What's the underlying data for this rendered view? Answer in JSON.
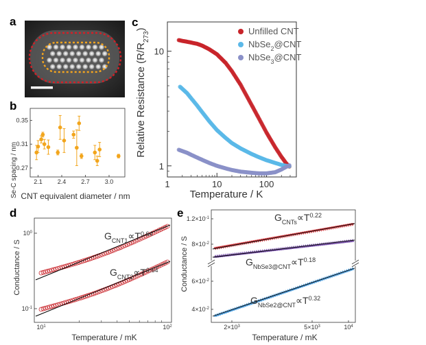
{
  "panels": {
    "a": {
      "label": "a"
    },
    "b": {
      "label": "b",
      "chart_data": {
        "type": "scatter",
        "xlabel": "CNT equivalent diameter / nm",
        "ylabel": "Se-C spacing / nm",
        "xlim": [
          2.0,
          3.2
        ],
        "ylim": [
          0.255,
          0.37
        ],
        "xticks": [
          "2.1",
          "2.4",
          "2.7",
          "3.0"
        ],
        "yticks": [
          "0.27",
          "0.31",
          "0.35"
        ],
        "points": [
          {
            "x": 2.08,
            "y": 0.296,
            "err": 0.012
          },
          {
            "x": 2.1,
            "y": 0.306,
            "err": 0.01
          },
          {
            "x": 2.14,
            "y": 0.318,
            "err": 0.006
          },
          {
            "x": 2.16,
            "y": 0.326,
            "err": 0.004
          },
          {
            "x": 2.18,
            "y": 0.31,
            "err": 0.008
          },
          {
            "x": 2.23,
            "y": 0.305,
            "err": 0.012
          },
          {
            "x": 2.35,
            "y": 0.296,
            "err": 0.004
          },
          {
            "x": 2.38,
            "y": 0.338,
            "err": 0.02
          },
          {
            "x": 2.43,
            "y": 0.316,
            "err": 0.02
          },
          {
            "x": 2.55,
            "y": 0.326,
            "err": 0.006
          },
          {
            "x": 2.59,
            "y": 0.304,
            "err": 0.03
          },
          {
            "x": 2.62,
            "y": 0.345,
            "err": 0.012
          },
          {
            "x": 2.65,
            "y": 0.29,
            "err": 0.004
          },
          {
            "x": 2.82,
            "y": 0.296,
            "err": 0.012
          },
          {
            "x": 2.85,
            "y": 0.282,
            "err": 0.008
          },
          {
            "x": 2.88,
            "y": 0.301,
            "err": 0.012
          },
          {
            "x": 3.12,
            "y": 0.29,
            "err": 0.003
          }
        ]
      }
    },
    "c": {
      "label": "c",
      "chart_data": {
        "type": "scatter",
        "xlabel": "Temperature / K",
        "ylabel": "Relative Resistance (R/R273)",
        "xscale": "log",
        "yscale": "log",
        "xlim": [
          1,
          400
        ],
        "ylim": [
          0.8,
          18
        ],
        "xticks": [
          "1",
          "10",
          "100"
        ],
        "yticks": [
          "1",
          "10"
        ],
        "legend_position": "top-right",
        "series": [
          {
            "name": "Unfilled CNT",
            "color": "#c8242a",
            "x": [
              1.7,
              2,
              2.5,
              3,
              4,
              5,
              7,
              10,
              15,
              20,
              30,
              50,
              70,
              100,
              150,
              200,
              250,
              300
            ],
            "y": [
              12.5,
              12.3,
              12.1,
              11.9,
              11.6,
              11.2,
              10.4,
              9.4,
              7.9,
              6.7,
              5.1,
              3.4,
              2.6,
              1.95,
              1.45,
              1.2,
              1.05,
              0.97
            ]
          },
          {
            "name": "NbSe2@CNT",
            "color": "#5bb8e8",
            "x": [
              1.8,
              2.5,
              3,
              4,
              5,
              7,
              10,
              15,
              20,
              30,
              50,
              70,
              100,
              150,
              200,
              250,
              300
            ],
            "y": [
              4.9,
              4.3,
              3.9,
              3.35,
              2.95,
              2.45,
              2.05,
              1.75,
              1.58,
              1.42,
              1.27,
              1.19,
              1.12,
              1.06,
              1.02,
              1.0,
              0.99
            ]
          },
          {
            "name": "NbSe3@CNT",
            "color": "#8a90c8",
            "x": [
              1.7,
              2.5,
              3,
              4,
              5,
              7,
              10,
              15,
              20,
              30,
              50,
              70,
              100,
              150,
              200,
              250,
              300
            ],
            "y": [
              1.38,
              1.3,
              1.25,
              1.18,
              1.13,
              1.06,
              1.0,
              0.95,
              0.92,
              0.89,
              0.87,
              0.86,
              0.86,
              0.88,
              0.93,
              0.98,
              1.02
            ]
          }
        ]
      }
    },
    "d": {
      "label": "d",
      "chart_data": {
        "type": "scatter",
        "xlabel": "Temperature / mK",
        "ylabel": "Conductance / S",
        "xscale": "log",
        "yscale": "log",
        "xticks": [
          "10",
          "100"
        ],
        "yticks": [
          "10-1",
          "100"
        ],
        "series": [
          {
            "name": "CNT1",
            "exponent": "0.64",
            "color": "#c8242a",
            "x": [
              10,
              100
            ],
            "y": [
              0.3,
              1.13
            ]
          },
          {
            "name": "CNT2",
            "exponent": "0.64",
            "color": "#c8242a",
            "x": [
              10,
              100
            ],
            "y": [
              0.11,
              0.4
            ]
          }
        ],
        "annotations": [
          {
            "main": "G",
            "sub": "CNT1",
            "rel": "∝T",
            "sup": "0.64"
          },
          {
            "main": "G",
            "sub": "CNT2",
            "rel": "∝T",
            "sup": "0.64"
          }
        ]
      }
    },
    "e": {
      "label": "e",
      "chart_data": {
        "type": "scatter",
        "xlabel": "Temperature / mK",
        "ylabel": "Conductance / S",
        "xscale": "log",
        "xticks": [
          "2×10",
          "5×10",
          "10"
        ],
        "yticks_upper": [
          "8×10",
          "1.2×10"
        ],
        "yticks_lower": [
          "4×10",
          "6×10"
        ],
        "series": [
          {
            "name": "CNTs",
            "exponent": "0.22",
            "color": "#c8242a"
          },
          {
            "name": "NbSe3@CNT",
            "exponent": "0.18",
            "color": "#6a3fa0"
          },
          {
            "name": "NbSe2@CNT",
            "exponent": "0.32",
            "color": "#3a93d8"
          }
        ],
        "annotations": [
          {
            "main": "G",
            "sub": "CNTs",
            "rel": "∝T",
            "sup": "0.22"
          },
          {
            "main": "G",
            "sub": "NbSe3@CNT",
            "rel": "∝T",
            "sup": "0.18"
          },
          {
            "main": "G",
            "sub": "NbSe2@CNT",
            "rel": "∝T",
            "sup": "0.32"
          }
        ]
      }
    }
  }
}
